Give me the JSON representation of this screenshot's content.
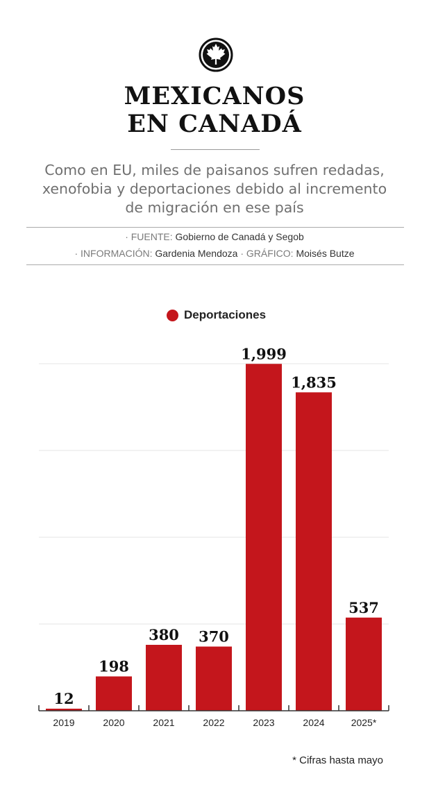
{
  "header": {
    "title_line1": "MEXICANOS",
    "title_line2": "EN CANADÁ",
    "subtitle_lines": [
      "Como en EU, miles de paisanos sufren redadas,",
      "xenofobia y deportaciones debido al incremento",
      "de migración en ese país"
    ]
  },
  "credits": {
    "source_label": "· FUENTE:",
    "source_value": "Gobierno de Canadá y Segob",
    "info_label": "· INFORMACIÓN:",
    "info_value": "Gardenia Mendoza",
    "graphic_label": "· GRÁFICO:",
    "graphic_value": "Moisés Butze"
  },
  "colors": {
    "bar": "#c4161c",
    "grid": "#e4e4e4",
    "axis": "#333333"
  },
  "chart_data": {
    "type": "bar",
    "title": "",
    "xlabel": "",
    "ylabel": "",
    "legend": [
      "Deportaciones"
    ],
    "categories": [
      "2019",
      "2020",
      "2021",
      "2022",
      "2023",
      "2024",
      "2025*"
    ],
    "values": [
      12,
      198,
      380,
      370,
      1999,
      1835,
      537
    ],
    "value_labels": [
      "12",
      "198",
      "380",
      "370",
      "1,999",
      "1,835",
      "537"
    ],
    "ylim": [
      0,
      2000
    ],
    "gridlines": [
      500,
      1000,
      1500,
      2000
    ]
  },
  "footnote": "* Cifras hasta mayo"
}
